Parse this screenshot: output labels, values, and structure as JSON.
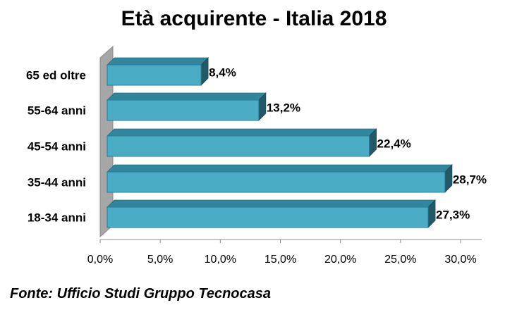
{
  "chart_data": {
    "type": "bar",
    "orientation": "horizontal",
    "style": "3d",
    "title": "Età acquirente - Italia 2018",
    "categories": [
      "65 ed oltre",
      "55-64 anni",
      "45-54 anni",
      "35-44 anni",
      "18-34 anni"
    ],
    "values": [
      8.4,
      13.2,
      22.4,
      28.7,
      27.3
    ],
    "value_labels": [
      "8,4%",
      "13,2%",
      "22,4%",
      "28,7%",
      "27,3%"
    ],
    "xlim": [
      0,
      30
    ],
    "xticks": [
      0,
      5,
      10,
      15,
      20,
      25,
      30
    ],
    "xtick_labels": [
      "0,0%",
      "5,0%",
      "10,0%",
      "15,0%",
      "20,0%",
      "25,0%",
      "30,0%"
    ],
    "grid": false,
    "colors": {
      "bar_front": "#4bacc6",
      "bar_top": "#31859c",
      "bar_side": "#215968",
      "wall": "#a6a6a6"
    }
  },
  "source": "Fonte: Ufficio Studi Gruppo Tecnocasa"
}
